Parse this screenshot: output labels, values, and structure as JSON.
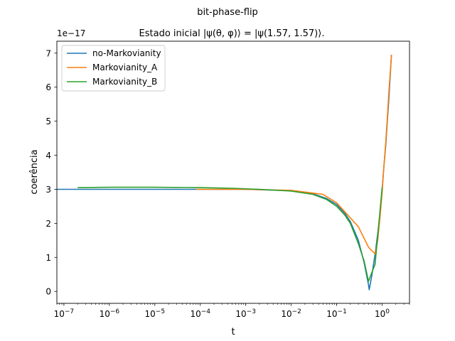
{
  "chart_data": {
    "type": "line",
    "suptitle": "bit-phase-flip",
    "title": "Estado inicial |ψ(θ, φ)⟩ = |ψ(1.57, 1.57)⟩.",
    "xlabel": "t",
    "ylabel": "coerência",
    "y_offset_label": "1e−17",
    "xscale": "log",
    "xlim": [
      7e-08,
      4
    ],
    "ylim": [
      -0.35,
      7.35
    ],
    "xticks": [
      {
        "v": 1e-07,
        "label": "10",
        "exp": "−7"
      },
      {
        "v": 1e-06,
        "label": "10",
        "exp": "−6"
      },
      {
        "v": 1e-05,
        "label": "10",
        "exp": "−5"
      },
      {
        "v": 0.0001,
        "label": "10",
        "exp": "−4"
      },
      {
        "v": 0.001,
        "label": "10",
        "exp": "−3"
      },
      {
        "v": 0.01,
        "label": "10",
        "exp": "−2"
      },
      {
        "v": 0.1,
        "label": "10",
        "exp": "−1"
      },
      {
        "v": 1,
        "label": "10",
        "exp": "0"
      }
    ],
    "yticks": [
      0,
      1,
      2,
      3,
      4,
      5,
      6,
      7
    ],
    "grid": false,
    "legend_position": "upper-left",
    "series": [
      {
        "name": "no-Markovianity",
        "color": "#1f77b4",
        "x": [
          7e-08,
          1e-07,
          1e-06,
          1e-05,
          0.0001,
          0.001,
          0.01,
          0.03,
          0.06,
          0.1,
          0.15,
          0.2,
          0.3,
          0.4,
          0.5,
          0.52,
          0.6,
          0.7,
          0.8,
          0.9,
          1.0,
          1.1,
          1.2,
          1.3,
          1.4,
          1.5,
          1.6
        ],
        "y": [
          3.0,
          3.0,
          3.0,
          3.0,
          3.0,
          3.0,
          2.96,
          2.87,
          2.73,
          2.55,
          2.3,
          2.05,
          1.5,
          0.85,
          0.2,
          0.05,
          0.5,
          1.1,
          1.7,
          2.3,
          3.0,
          3.7,
          4.3,
          5.0,
          5.6,
          6.3,
          6.95
        ]
      },
      {
        "name": "Markovianity_A",
        "color": "#ff7f0e",
        "x": [
          8e-05,
          0.0001,
          0.001,
          0.01,
          0.05,
          0.1,
          0.3,
          0.5,
          0.7,
          0.8,
          0.9,
          1.0,
          1.1,
          1.2,
          1.3,
          1.4,
          1.5,
          1.6
        ],
        "y": [
          3.0,
          3.0,
          3.0,
          2.97,
          2.85,
          2.6,
          1.9,
          1.3,
          1.1,
          1.5,
          2.2,
          2.9,
          3.7,
          4.4,
          5.1,
          5.8,
          6.4,
          6.95
        ]
      },
      {
        "name": "Markovianity_B",
        "color": "#2ca02c",
        "x": [
          2e-07,
          1e-06,
          1e-05,
          0.0001,
          0.0005,
          0.002,
          0.01,
          0.03,
          0.06,
          0.1,
          0.15,
          0.2,
          0.3,
          0.4,
          0.5,
          0.7,
          1.0
        ],
        "y": [
          3.05,
          3.06,
          3.06,
          3.05,
          3.03,
          3.0,
          2.95,
          2.85,
          2.7,
          2.5,
          2.25,
          2.0,
          1.4,
          0.9,
          0.3,
          0.8,
          3.05
        ]
      }
    ]
  }
}
